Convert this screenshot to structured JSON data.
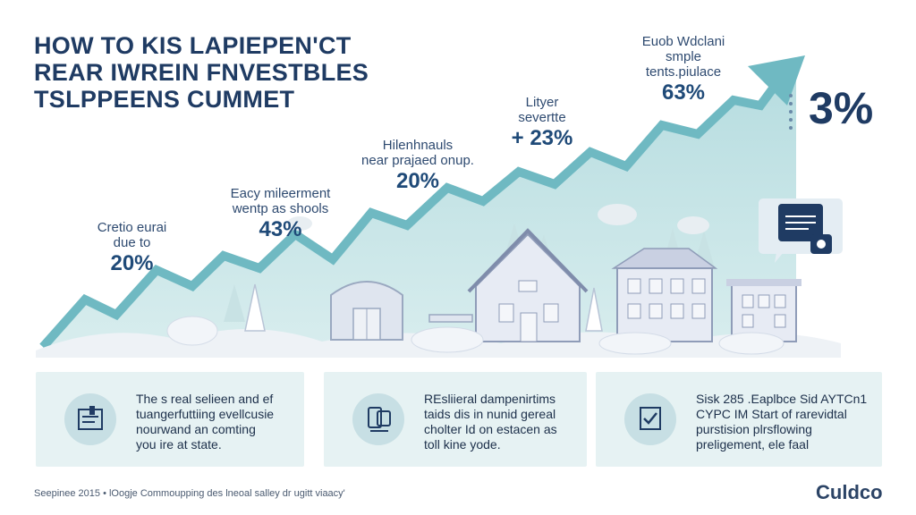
{
  "title": {
    "line1": "HOW TO KIS LAPIEPEN'CT",
    "line2": "REAR IWREIN FNVESTBLES",
    "line3": "TSLPPEENS CUMMET"
  },
  "callouts": [
    {
      "line1": "Cretio eurai",
      "line2": "due to",
      "value": "20%"
    },
    {
      "line1": "Eacy mileerment",
      "line2": "wentp as shools",
      "value": "43%"
    },
    {
      "line1": "Hilenhnauls",
      "line2": "near prajaed onup.",
      "value": "20%"
    },
    {
      "line1": "Lityer",
      "line2": "severtte",
      "value": "+ 23%"
    },
    {
      "line1": "Euob Wdclani",
      "line2": "smple",
      "line3": "tents.piulace",
      "value": "63%"
    }
  ],
  "big_stat": "3%",
  "cards": [
    {
      "lines": [
        "The s real selieen and ef",
        "tuangerfuttiing evellcusie",
        "nourwand an comting",
        "you ire at state."
      ],
      "icon": "document-chart-icon"
    },
    {
      "lines": [
        "REsliieral dampenirtims",
        "taids dis in nunid gereal",
        "cholter Id on estacen as",
        "toll kine yode."
      ],
      "icon": "devices-icon"
    },
    {
      "lines": [
        "Sisk 285 .Eaplbce Sid AYTCn1",
        "CYPC IM Start of rarevidtal",
        "purstision plrsflowing",
        "preligement, ele faal"
      ],
      "icon": "checklist-icon"
    }
  ],
  "footer": "Seepinee 2015  •  lOogje Commoupping des lneoal salley dr ugitt viaacy'",
  "brand": "Culdco",
  "colors": {
    "navy": "#1f3b63",
    "teal": "#7fc0c8",
    "card_bg": "#e6f2f3"
  }
}
